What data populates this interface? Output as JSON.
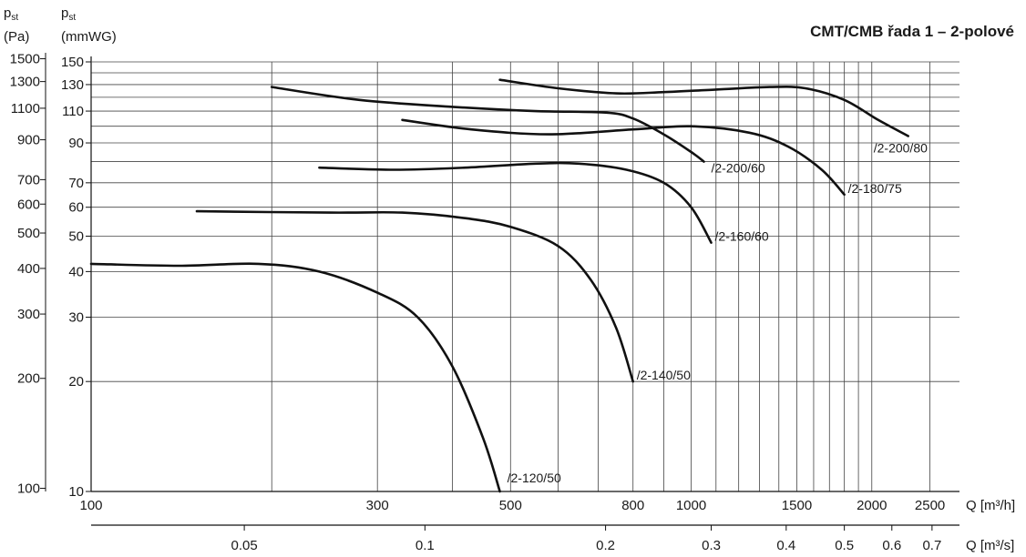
{
  "chart_data": {
    "type": "line",
    "title": "CMT/CMB řada 1 – 2-polové",
    "y_left": {
      "label_main": "p",
      "label_sub": "st",
      "unit": "(Pa)",
      "ticks": [
        "1500",
        "1300",
        "1100",
        "900",
        "700",
        "600",
        "500",
        "400",
        "300",
        "200",
        "100"
      ]
    },
    "y_right": {
      "label_main": "p",
      "label_sub": "st",
      "unit": "(mmWG)",
      "scale": "log",
      "ylim": [
        10,
        150
      ],
      "tick_values": [
        150,
        130,
        110,
        90,
        70,
        60,
        50,
        40,
        30,
        20,
        10
      ],
      "ticks": [
        "150",
        "130",
        "110",
        "90",
        "70",
        "60",
        "50",
        "40",
        "30",
        "20",
        "10"
      ]
    },
    "x_bottom": {
      "scale": "log",
      "xlim": [
        100,
        2800
      ],
      "label": "Q [m³/h]",
      "tick_values": [
        100,
        300,
        500,
        800,
        1000,
        1500,
        2000,
        2500
      ],
      "ticks": [
        "100",
        "300",
        "500",
        "800",
        "1000",
        "1500",
        "2000",
        "2500"
      ]
    },
    "x_second": {
      "label": "Q [m³/s]",
      "ticks": [
        "0.05",
        "0.1",
        "0.2",
        "0.3",
        "0.4",
        "0.5",
        "0.6",
        "0.7"
      ]
    },
    "grid": true,
    "series": [
      {
        "name": "/2-120/50",
        "points": [
          [
            100,
            42
          ],
          [
            140,
            41.5
          ],
          [
            190,
            42
          ],
          [
            240,
            40
          ],
          [
            300,
            35
          ],
          [
            350,
            30
          ],
          [
            400,
            22
          ],
          [
            450,
            14
          ],
          [
            480,
            10
          ]
        ]
      },
      {
        "name": "/2-140/50",
        "points": [
          [
            150,
            58.5
          ],
          [
            250,
            58
          ],
          [
            330,
            58
          ],
          [
            420,
            56
          ],
          [
            500,
            53
          ],
          [
            600,
            47
          ],
          [
            680,
            38
          ],
          [
            750,
            28
          ],
          [
            800,
            20
          ]
        ]
      },
      {
        "name": "/2-160/60",
        "points": [
          [
            240,
            77
          ],
          [
            320,
            76
          ],
          [
            420,
            77
          ],
          [
            550,
            79
          ],
          [
            650,
            79
          ],
          [
            780,
            76
          ],
          [
            900,
            70
          ],
          [
            1000,
            60
          ],
          [
            1080,
            48
          ]
        ]
      },
      {
        "name": "/2-180/75",
        "points": [
          [
            330,
            104
          ],
          [
            430,
            98
          ],
          [
            580,
            95
          ],
          [
            800,
            98
          ],
          [
            1000,
            100
          ],
          [
            1250,
            96
          ],
          [
            1450,
            88
          ],
          [
            1650,
            76
          ],
          [
            1800,
            65
          ]
        ]
      },
      {
        "name": "/2-200/60",
        "points": [
          [
            200,
            128
          ],
          [
            280,
            118
          ],
          [
            400,
            113
          ],
          [
            550,
            110
          ],
          [
            720,
            109
          ],
          [
            800,
            105
          ],
          [
            900,
            95
          ],
          [
            1000,
            85
          ],
          [
            1050,
            80
          ]
        ]
      },
      {
        "name": "/2-200/80",
        "points": [
          [
            480,
            134
          ],
          [
            600,
            127
          ],
          [
            750,
            123
          ],
          [
            900,
            124
          ],
          [
            1100,
            126
          ],
          [
            1350,
            128
          ],
          [
            1550,
            127
          ],
          [
            1800,
            118
          ],
          [
            2050,
            104
          ],
          [
            2300,
            94
          ]
        ]
      }
    ]
  }
}
